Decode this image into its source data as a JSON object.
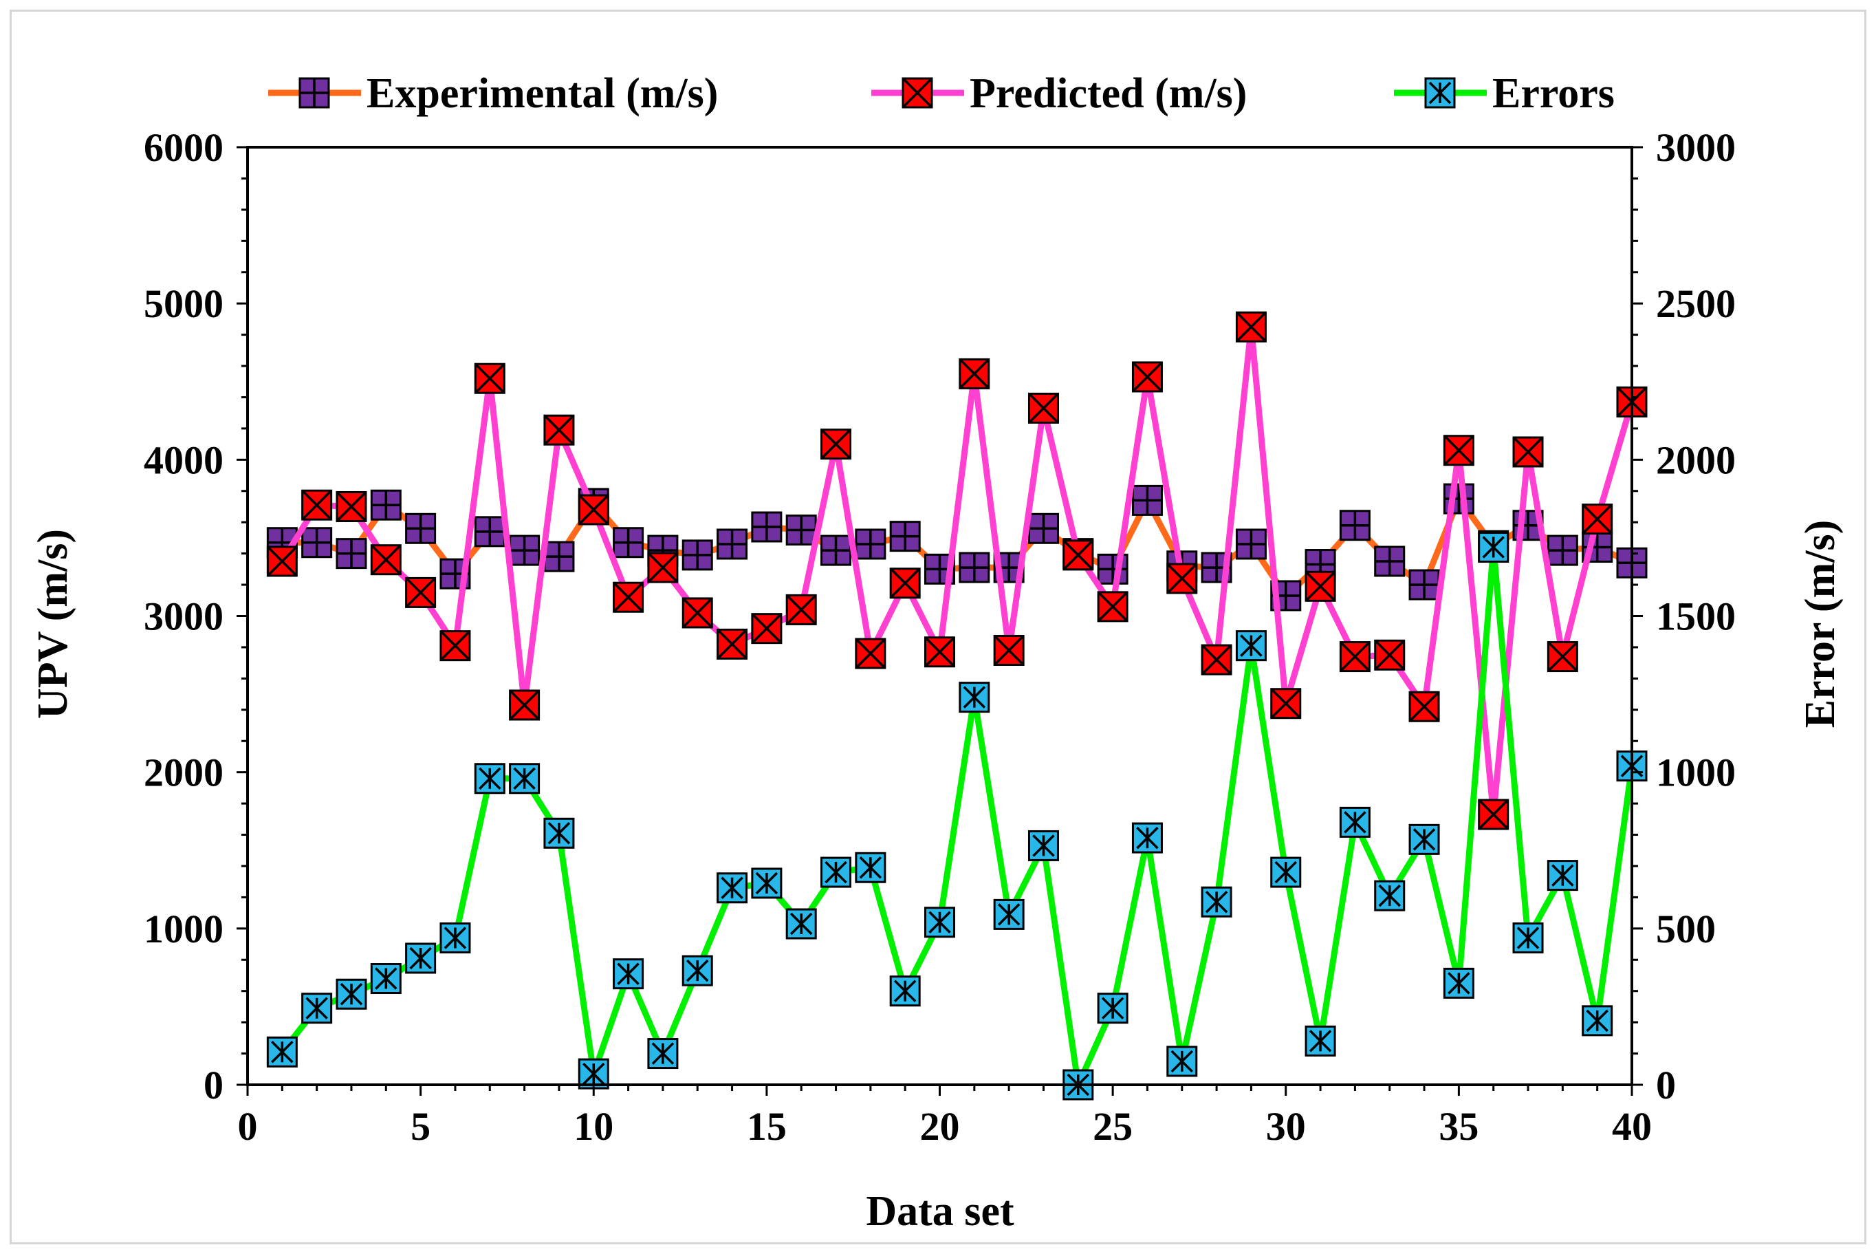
{
  "chart_data": {
    "type": "line",
    "xlabel": "Data set",
    "ylabel_left": "UPV (m/s)",
    "ylabel_right": "Error (m/s)",
    "xlim": [
      0,
      40
    ],
    "ylim_left": [
      0,
      6000
    ],
    "ylim_right": [
      0,
      3000
    ],
    "x_ticks": [
      0,
      5,
      10,
      15,
      20,
      25,
      30,
      35,
      40
    ],
    "y_left_ticks": [
      0,
      1000,
      2000,
      3000,
      4000,
      5000,
      6000
    ],
    "y_right_ticks": [
      0,
      500,
      1000,
      1500,
      2000,
      2500,
      3000
    ],
    "grid": false,
    "legend_position": "top",
    "x": [
      1,
      2,
      3,
      4,
      5,
      6,
      7,
      8,
      9,
      10,
      11,
      12,
      13,
      14,
      15,
      16,
      17,
      18,
      19,
      20,
      21,
      22,
      23,
      24,
      25,
      26,
      27,
      28,
      29,
      30,
      31,
      32,
      33,
      34,
      35,
      36,
      37,
      38,
      39,
      40
    ],
    "series": [
      {
        "name": "Experimental (m/s)",
        "axis": "left",
        "line_color": "#ff6a1a",
        "marker_color": "#7030a0",
        "marker": "plus-square",
        "values": [
          3470,
          3470,
          3400,
          3710,
          3560,
          3270,
          3540,
          3420,
          3380,
          3720,
          3470,
          3420,
          3390,
          3460,
          3570,
          3550,
          3420,
          3460,
          3510,
          3300,
          3310,
          3310,
          3560,
          3400,
          3300,
          3740,
          3320,
          3310,
          3460,
          3130,
          3330,
          3580,
          3350,
          3200,
          3750,
          3450,
          3580,
          3420,
          3440,
          3340
        ]
      },
      {
        "name": "Predicted (m/s)",
        "axis": "left",
        "line_color": "#ff40d0",
        "marker_color": "#ff0000",
        "marker": "x-square",
        "values": [
          3350,
          3710,
          3700,
          3360,
          3150,
          2810,
          4520,
          2430,
          4190,
          3680,
          3120,
          3310,
          3020,
          2820,
          2920,
          3040,
          4100,
          2760,
          3210,
          2770,
          4550,
          2780,
          4330,
          3390,
          3060,
          4530,
          3240,
          2720,
          4850,
          2440,
          3190,
          2740,
          2750,
          2420,
          4060,
          1730,
          4050,
          2740,
          3620,
          4370
        ]
      },
      {
        "name": "Errors",
        "axis": "right",
        "line_color": "#00f000",
        "marker_color": "#29b6e8",
        "marker": "asterisk-square",
        "values": [
          105,
          245,
          290,
          340,
          405,
          470,
          980,
          980,
          805,
          35,
          355,
          100,
          365,
          630,
          645,
          515,
          680,
          695,
          300,
          520,
          1240,
          545,
          765,
          0,
          245,
          790,
          75,
          585,
          1405,
          680,
          140,
          840,
          605,
          785,
          325,
          1720,
          470,
          670,
          205,
          1020
        ]
      }
    ]
  }
}
